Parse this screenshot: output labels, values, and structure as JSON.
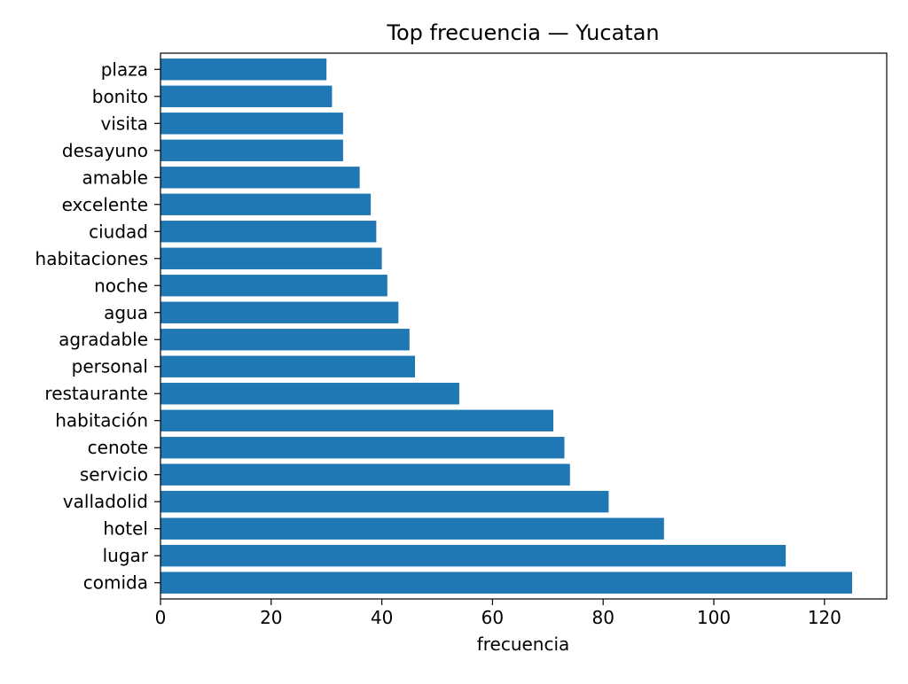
{
  "chart_data": {
    "type": "bar",
    "orientation": "horizontal",
    "title": "Top frecuencia — Yucatan",
    "xlabel": "frecuencia",
    "ylabel": "",
    "categories": [
      "comida",
      "lugar",
      "hotel",
      "valladolid",
      "servicio",
      "cenote",
      "habitación",
      "restaurante",
      "personal",
      "agradable",
      "agua",
      "noche",
      "habitaciones",
      "ciudad",
      "excelente",
      "amable",
      "desayuno",
      "visita",
      "bonito",
      "plaza"
    ],
    "values": [
      125,
      113,
      91,
      81,
      74,
      73,
      71,
      54,
      46,
      45,
      43,
      41,
      40,
      39,
      38,
      36,
      33,
      33,
      31,
      30
    ],
    "xlim": [
      0,
      131.25
    ],
    "xticks": [
      0,
      20,
      40,
      60,
      80,
      100,
      120
    ],
    "bar_color": "#1f77b4",
    "grid": false,
    "legend": false
  }
}
